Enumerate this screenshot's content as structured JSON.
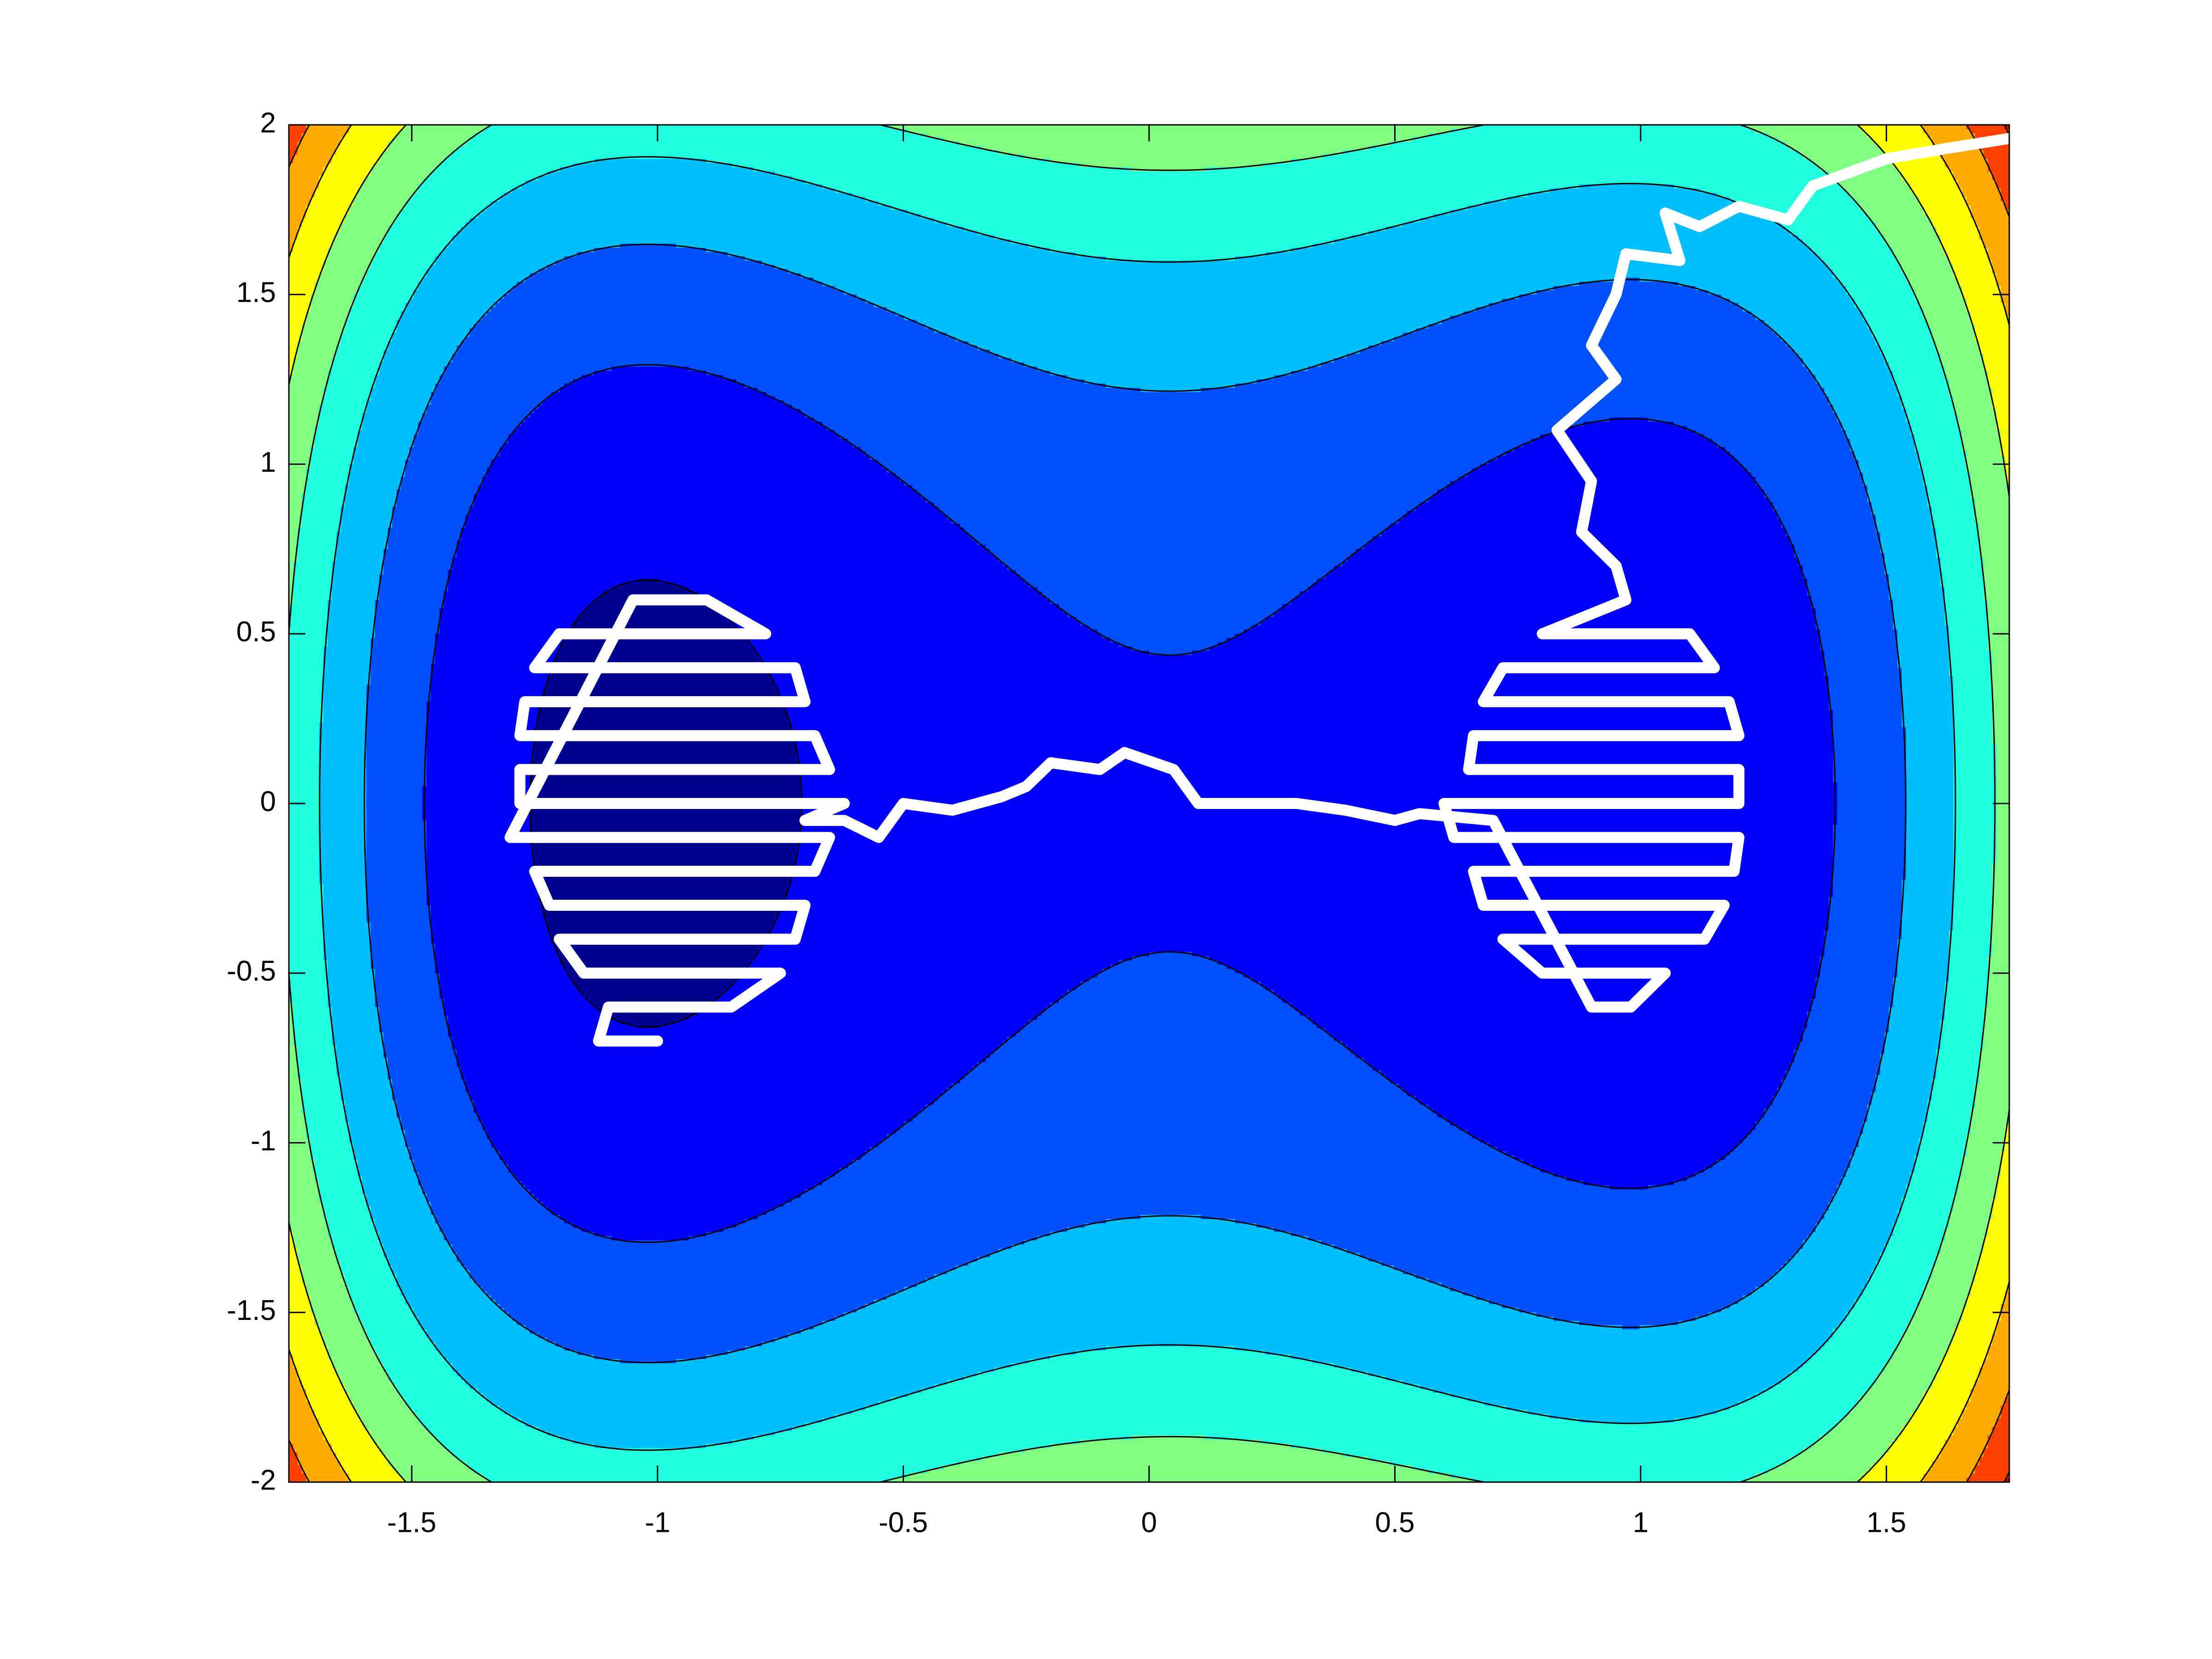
{
  "chart_data": {
    "type": "contour",
    "xlim": [
      -1.75,
      1.75
    ],
    "ylim": [
      -2,
      2
    ],
    "xticks": [
      -1.5,
      -1,
      -0.5,
      0,
      0.5,
      1,
      1.5
    ],
    "yticks": [
      -2,
      -1.5,
      -1,
      -0.5,
      0,
      0.5,
      1,
      1.5,
      2
    ],
    "colormap": [
      "#00008f",
      "#0000ff",
      "#0050ff",
      "#00bfff",
      "#20ffdf",
      "#80ff80",
      "#ffff00",
      "#ffaa00",
      "#ff4000",
      "#d00000"
    ],
    "contour_color": "#000000",
    "color": "#ffffff",
    "x": [
      1.75,
      1.62,
      1.5,
      1.35,
      1.3,
      1.2,
      1.12,
      1.05,
      1.08,
      0.97,
      0.95,
      0.9,
      0.95,
      0.83,
      0.9,
      0.88,
      0.95,
      0.97,
      0.8,
      1.1,
      1.15,
      0.72,
      0.68,
      1.18,
      1.2,
      0.66,
      0.65,
      1.2,
      1.2,
      0.6,
      0.62,
      1.2,
      1.19,
      0.66,
      0.68,
      1.17,
      1.13,
      0.72,
      0.8,
      1.05,
      0.98,
      0.9,
      0.7,
      0.55,
      0.5,
      0.4,
      0.3,
      0.1,
      0.05,
      -0.05,
      -0.1,
      -0.2,
      -0.25,
      -0.3,
      -0.4,
      -0.5,
      -0.55,
      -0.62,
      -0.7,
      -0.62,
      -1.28,
      -1.28,
      -0.65,
      -0.68,
      -1.28,
      -1.27,
      -0.7,
      -0.72,
      -1.25,
      -1.2,
      -0.78,
      -0.9,
      -1.05,
      -1.3,
      -0.65,
      -0.68,
      -1.25,
      -1.22,
      -0.7,
      -0.72,
      -1.2,
      -1.15,
      -0.75,
      -0.85,
      -1.1,
      -1.12,
      -1.0
    ],
    "values": [
      1.96,
      1.93,
      1.9,
      1.82,
      1.72,
      1.76,
      1.7,
      1.74,
      1.6,
      1.62,
      1.5,
      1.35,
      1.25,
      1.1,
      0.95,
      0.8,
      0.7,
      0.6,
      0.5,
      0.5,
      0.4,
      0.4,
      0.3,
      0.3,
      0.2,
      0.2,
      0.1,
      0.1,
      0.0,
      0.0,
      -0.1,
      -0.1,
      -0.2,
      -0.2,
      -0.3,
      -0.3,
      -0.4,
      -0.4,
      -0.5,
      -0.5,
      -0.6,
      -0.6,
      -0.05,
      -0.03,
      -0.05,
      -0.02,
      0.0,
      0.0,
      0.1,
      0.15,
      0.1,
      0.12,
      0.05,
      0.02,
      -0.02,
      0.0,
      -0.1,
      -0.05,
      -0.05,
      0.0,
      0.0,
      0.1,
      0.1,
      0.2,
      0.2,
      0.3,
      0.3,
      0.4,
      0.4,
      0.5,
      0.5,
      0.6,
      0.6,
      -0.1,
      -0.1,
      -0.2,
      -0.2,
      -0.3,
      -0.3,
      -0.4,
      -0.4,
      -0.5,
      -0.5,
      -0.6,
      -0.6,
      -0.7,
      -0.7
    ]
  }
}
